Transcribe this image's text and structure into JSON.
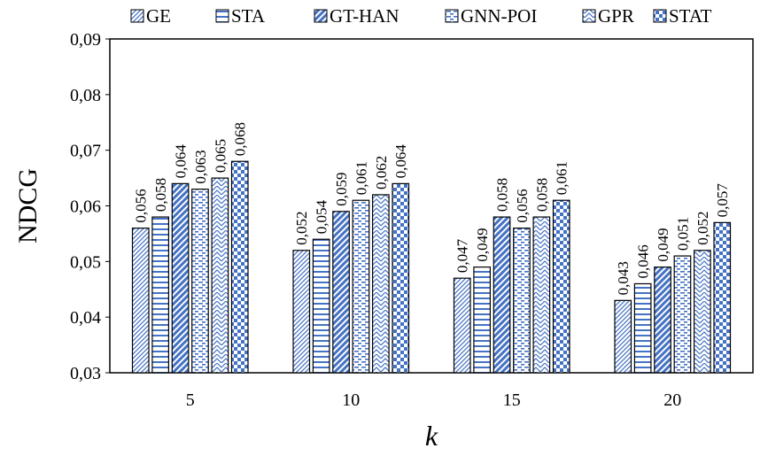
{
  "chart_data": {
    "type": "bar",
    "title": "",
    "xlabel": "k",
    "ylabel": "NDCG",
    "categories": [
      "5",
      "10",
      "15",
      "20"
    ],
    "ylim": [
      0.03,
      0.09
    ],
    "yticks": [
      0.03,
      0.04,
      0.05,
      0.06,
      0.07,
      0.08,
      0.09
    ],
    "ytick_labels": [
      "0,03",
      "0,04",
      "0,05",
      "0,06",
      "0,07",
      "0,08",
      "0,09"
    ],
    "grid": false,
    "legend_position": "top",
    "series": [
      {
        "name": "GE",
        "values": [
          0.056,
          0.052,
          0.047,
          0.043
        ],
        "labels": [
          "0,056",
          "0,052",
          "0,047",
          "0,043"
        ],
        "color": "#4472C4",
        "pattern": "diag-fine"
      },
      {
        "name": "STA",
        "values": [
          0.058,
          0.054,
          0.049,
          0.046
        ],
        "labels": [
          "0,058",
          "0,054",
          "0,049",
          "0,046"
        ],
        "color": "#4472C4",
        "pattern": "horizontal"
      },
      {
        "name": "GT-HAN",
        "values": [
          0.064,
          0.059,
          0.058,
          0.049
        ],
        "labels": [
          "0,064",
          "0,059",
          "0,058",
          "0,049"
        ],
        "color": "#4472C4",
        "pattern": "diag-wide"
      },
      {
        "name": "GNN-POI",
        "values": [
          0.063,
          0.061,
          0.056,
          0.051
        ],
        "labels": [
          "0,063",
          "0,061",
          "0,056",
          "0,051"
        ],
        "color": "#4472C4",
        "pattern": "dashed-horizontal"
      },
      {
        "name": "GPR",
        "values": [
          0.065,
          0.062,
          0.058,
          0.052
        ],
        "labels": [
          "0,065",
          "0,062",
          "0,058",
          "0,052"
        ],
        "color": "#4472C4",
        "pattern": "zigzag"
      },
      {
        "name": "STAT",
        "values": [
          0.068,
          0.064,
          0.061,
          0.057
        ],
        "labels": [
          "0,068",
          "0,064",
          "0,061",
          "0,057"
        ],
        "color": "#4472C4",
        "pattern": "checker"
      }
    ]
  }
}
